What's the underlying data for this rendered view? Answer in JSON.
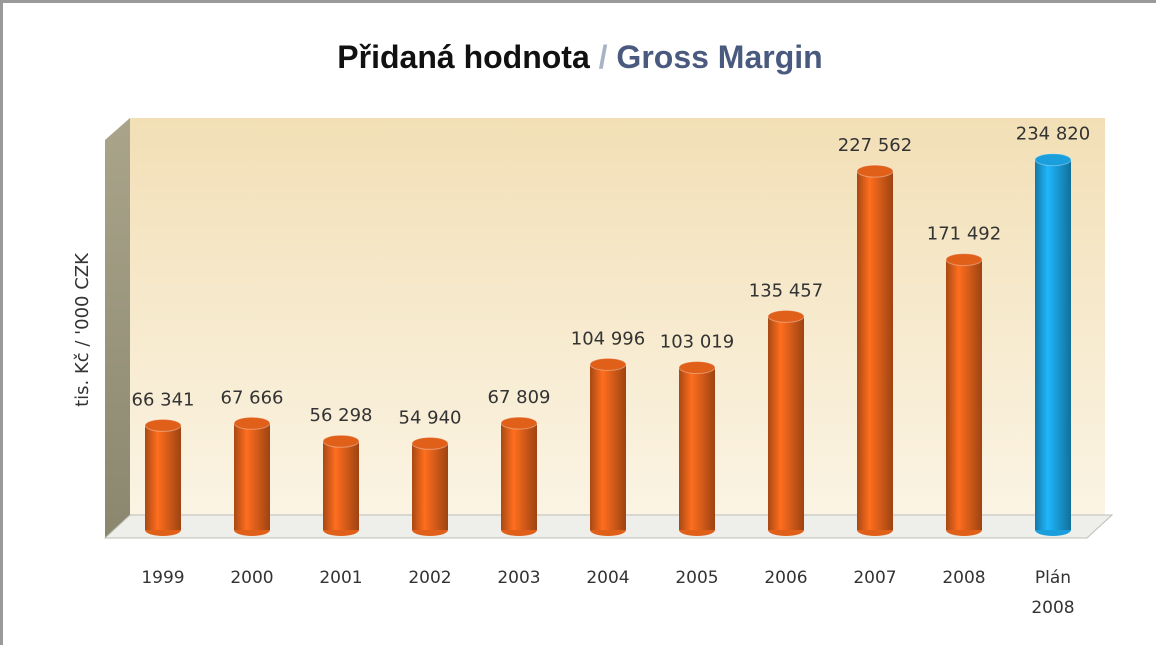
{
  "chart_data": {
    "type": "bar",
    "title": "Přidaná hodnota / Gross Margin",
    "title_colors": [
      "#111111",
      "#a9b3c6",
      "#4a5a7e"
    ],
    "ylabel": "tis. Kč / '000 CZK",
    "categories": [
      "1999",
      "2000",
      "2001",
      "2002",
      "2003",
      "2004",
      "2005",
      "2006",
      "2007",
      "2008",
      "Plán 2008"
    ],
    "values": [
      66341,
      67666,
      56298,
      54940,
      67809,
      104996,
      103019,
      135457,
      227562,
      171492,
      234820
    ],
    "value_labels": [
      "66 341",
      "67 666",
      "56 298",
      "54 940",
      "67 809",
      "104 996",
      "103 019",
      "135 457",
      "227 562",
      "171 492",
      "234 820"
    ],
    "colors": [
      "#e0601a",
      "#e0601a",
      "#e0601a",
      "#e0601a",
      "#e0601a",
      "#e0601a",
      "#e0601a",
      "#e0601a",
      "#e0601a",
      "#e0601a",
      "#1a9fdc"
    ],
    "ylim": [
      0,
      260000
    ]
  }
}
